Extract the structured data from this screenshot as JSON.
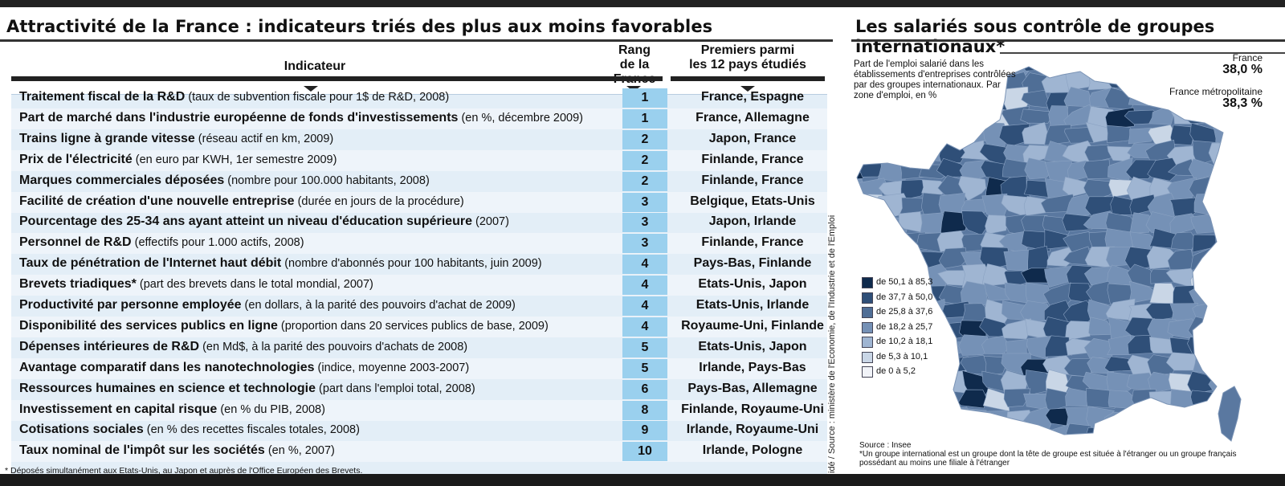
{
  "left_panel": {
    "title": "Attractivité de la France : indicateurs triés des plus aux moins favorables",
    "headers": {
      "indicator": "Indicateur",
      "rank": [
        "Rang",
        "de la France"
      ],
      "first": [
        "Premiers parmi",
        "les 12 pays étudiés"
      ]
    },
    "rows": [
      {
        "bold": "Traitement fiscal de la R&D",
        "detail": "(taux de subvention fiscale pour 1$ de R&D, 2008)",
        "rank": "1",
        "countries": "France, Espagne"
      },
      {
        "bold": "Part de marché dans l'industrie européenne de fonds d'investissements",
        "detail": "(en %, décembre 2009)",
        "rank": "1",
        "countries": "France, Allemagne"
      },
      {
        "bold": "Trains ligne à grande vitesse",
        "detail": "(réseau actif en km, 2009)",
        "rank": "2",
        "countries": "Japon, France"
      },
      {
        "bold": "Prix de l'électricité",
        "detail": "(en euro par KWH, 1er semestre 2009)",
        "rank": "2",
        "countries": "Finlande, France"
      },
      {
        "bold": "Marques commerciales déposées",
        "detail": "(nombre pour 100.000 habitants, 2008)",
        "rank": "2",
        "countries": "Finlande, France"
      },
      {
        "bold": "Facilité de création d'une nouvelle entreprise",
        "detail": "(durée en jours de la procédure)",
        "rank": "3",
        "countries": "Belgique, Etats-Unis"
      },
      {
        "bold": "Pourcentage des 25-34 ans ayant atteint un niveau d'éducation supérieure",
        "detail": "(2007)",
        "rank": "3",
        "countries": "Japon, Irlande"
      },
      {
        "bold": "Personnel de R&D",
        "detail": "(effectifs pour 1.000 actifs, 2008)",
        "rank": "3",
        "countries": "Finlande, France"
      },
      {
        "bold": "Taux de pénétration de l'Internet haut débit",
        "detail": "(nombre d'abonnés pour 100 habitants, juin 2009)",
        "rank": "4",
        "countries": "Pays-Bas, Finlande"
      },
      {
        "bold": "Brevets triadiques*",
        "detail": "(part des brevets dans le total mondial, 2007)",
        "rank": "4",
        "countries": "Etats-Unis, Japon"
      },
      {
        "bold": "Productivité par personne employée",
        "detail": "(en dollars, à la parité des pouvoirs d'achat de 2009)",
        "rank": "4",
        "countries": "Etats-Unis, Irlande"
      },
      {
        "bold": "Disponibilité des services publics en ligne",
        "detail": "(proportion dans 20 services publics de base, 2009)",
        "rank": "4",
        "countries": "Royaume-Uni, Finlande"
      },
      {
        "bold": "Dépenses intérieures de R&D",
        "detail": "(en Md$, à la parité des pouvoirs d'achats de 2008)",
        "rank": "5",
        "countries": "Etats-Unis, Japon"
      },
      {
        "bold": "Avantage comparatif dans les nanotechnologies",
        "detail": "(indice, moyenne 2003-2007)",
        "rank": "5",
        "countries": "Irlande, Pays-Bas"
      },
      {
        "bold": "Ressources humaines en science et technologie",
        "detail": "(part dans l'emploi total, 2008)",
        "rank": "6",
        "countries": "Pays-Bas, Allemagne"
      },
      {
        "bold": "Investissement en capital risque",
        "detail": "(en % du PIB, 2008)",
        "rank": "8",
        "countries": "Finlande, Royaume-Uni"
      },
      {
        "bold": "Cotisations sociales",
        "detail": "(en % des recettes fiscales totales, 2008)",
        "rank": "9",
        "countries": "Irlande, Royaume-Uni"
      },
      {
        "bold": "Taux nominal de l'impôt sur les sociétés",
        "detail": "(en %, 2007)",
        "rank": "10",
        "countries": "Irlande, Pologne"
      }
    ],
    "footnote": "* Déposés simultanément aux Etats-Unis, au Japon et auprès de l'Office Européen des Brevets.",
    "vertical_source": "idé / Source : ministère de l'Economie, de l'Industrie et de l'Emploi"
  },
  "right_panel": {
    "title_line1": "Les salariés sous contrôle de groupes",
    "title_line2": "internationaux*",
    "description": "Part de l'emploi salarié dans les établissements d'entreprises contrôlées par des groupes internationaux. Par zone d'emploi, en %",
    "france_label": "France",
    "france_value": "38,0 %",
    "metro_label": "France métropolitaine",
    "metro_value": "38,3 %",
    "legend": [
      {
        "label": "de 50,1 à 85,3",
        "color": "#0f2a4c"
      },
      {
        "label": "de 37,7 à 50,0",
        "color": "#2f4f78"
      },
      {
        "label": "de 25,8 à 37,6",
        "color": "#4f6e96"
      },
      {
        "label": "de 18,2 à 25,7",
        "color": "#7591b6"
      },
      {
        "label": "de 10,2 à 18,1",
        "color": "#9fb5d2"
      },
      {
        "label": "de 5,3 à 10,1",
        "color": "#c9d6e6"
      },
      {
        "label": "de  0 à 5,2",
        "color": "#f1f3f8"
      }
    ],
    "source": "Source : Insee",
    "footnote": "*Un groupe international est un groupe dont la tête de groupe est située à l'étranger ou un groupe français possédant au moins une filiale à l'étranger"
  },
  "colors": {
    "rank_cell": "#9ad0ee",
    "table_bg": "#e3eef7",
    "map_base": "#5a78a0"
  }
}
